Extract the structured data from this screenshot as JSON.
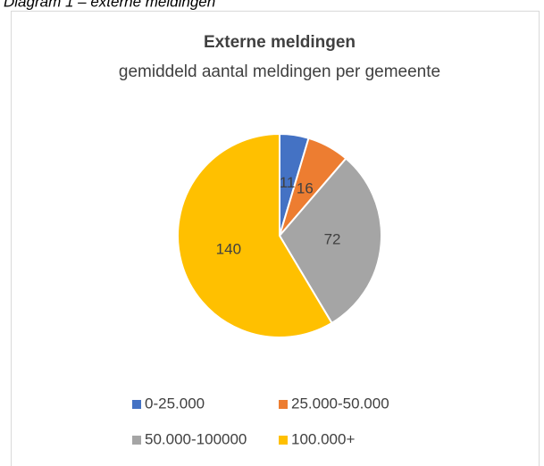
{
  "caption": "Diagram 1 – externe meldingen",
  "chart_data": {
    "type": "pie",
    "title": "Externe meldingen",
    "subtitle": "gemiddeld aantal meldingen per gemeente",
    "categories": [
      "0-25.000",
      "25.000-50.000",
      "50.000-100000",
      "100.000+"
    ],
    "values": [
      11,
      16,
      72,
      140
    ],
    "colors": [
      "#4472c4",
      "#ed7d31",
      "#a5a5a5",
      "#ffc000"
    ],
    "legend": "bottom"
  }
}
